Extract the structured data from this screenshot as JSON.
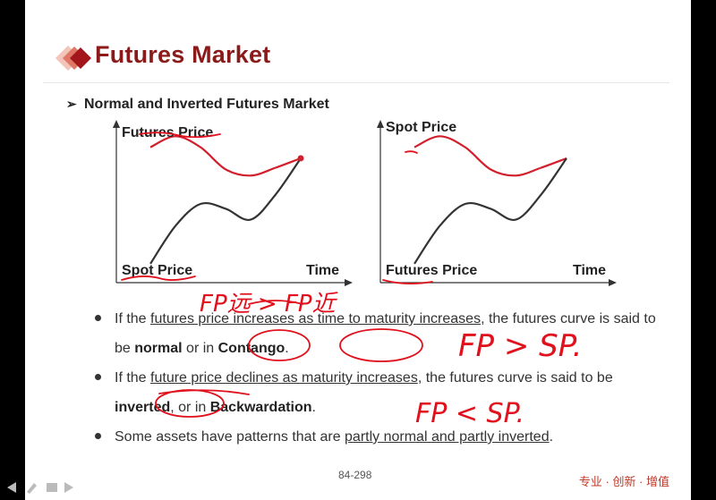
{
  "title": "Futures Market",
  "subtitle": "Normal and Inverted Futures Market",
  "chart_data": [
    {
      "type": "line",
      "ylabel": "Futures Price",
      "bottom_label": "Spot Price",
      "xlabel": "Time",
      "series": [
        {
          "values": [
            0.86,
            0.93,
            0.86,
            0.72,
            0.68,
            0.73,
            0.79
          ]
        },
        {
          "values": [
            0.12,
            0.36,
            0.5,
            0.47,
            0.4,
            0.56,
            0.79
          ]
        }
      ],
      "colors": [
        "#d21f2b",
        "#333333"
      ]
    },
    {
      "type": "line",
      "ylabel": "Spot Price",
      "bottom_label": "Futures Price",
      "xlabel": "Time",
      "series": [
        {
          "values": [
            0.86,
            0.93,
            0.86,
            0.72,
            0.68,
            0.73,
            0.79
          ]
        },
        {
          "values": [
            0.12,
            0.36,
            0.5,
            0.47,
            0.4,
            0.56,
            0.79
          ]
        }
      ],
      "colors": [
        "#d21f2b",
        "#333333"
      ]
    }
  ],
  "bullets": {
    "b1": {
      "t1": "If the ",
      "u1": "futures price increases as time to maturity increases",
      "t2": ", the futures curve is said to be ",
      "b1": "normal",
      "t3": " or in ",
      "b2": "Contango",
      "t4": "."
    },
    "b2": {
      "t1": "If the ",
      "u1": "future price declines as maturity increases",
      "t2": ", the futures curve is said to be ",
      "b1": "inverted",
      "t3": ", or in ",
      "b2": "Backwardation",
      "t4": "."
    },
    "b3": {
      "t1": "Some assets have patterns that are ",
      "u1": "partly normal and partly inverted",
      "t2": "."
    }
  },
  "handwriting": {
    "n1": "FP远 > FP近",
    "n2": "FP > SP.",
    "n3": "FP < SP."
  },
  "page_number": "84-298",
  "brand": "专业 · 创新 · 增值",
  "ink_color": "#e0101c"
}
